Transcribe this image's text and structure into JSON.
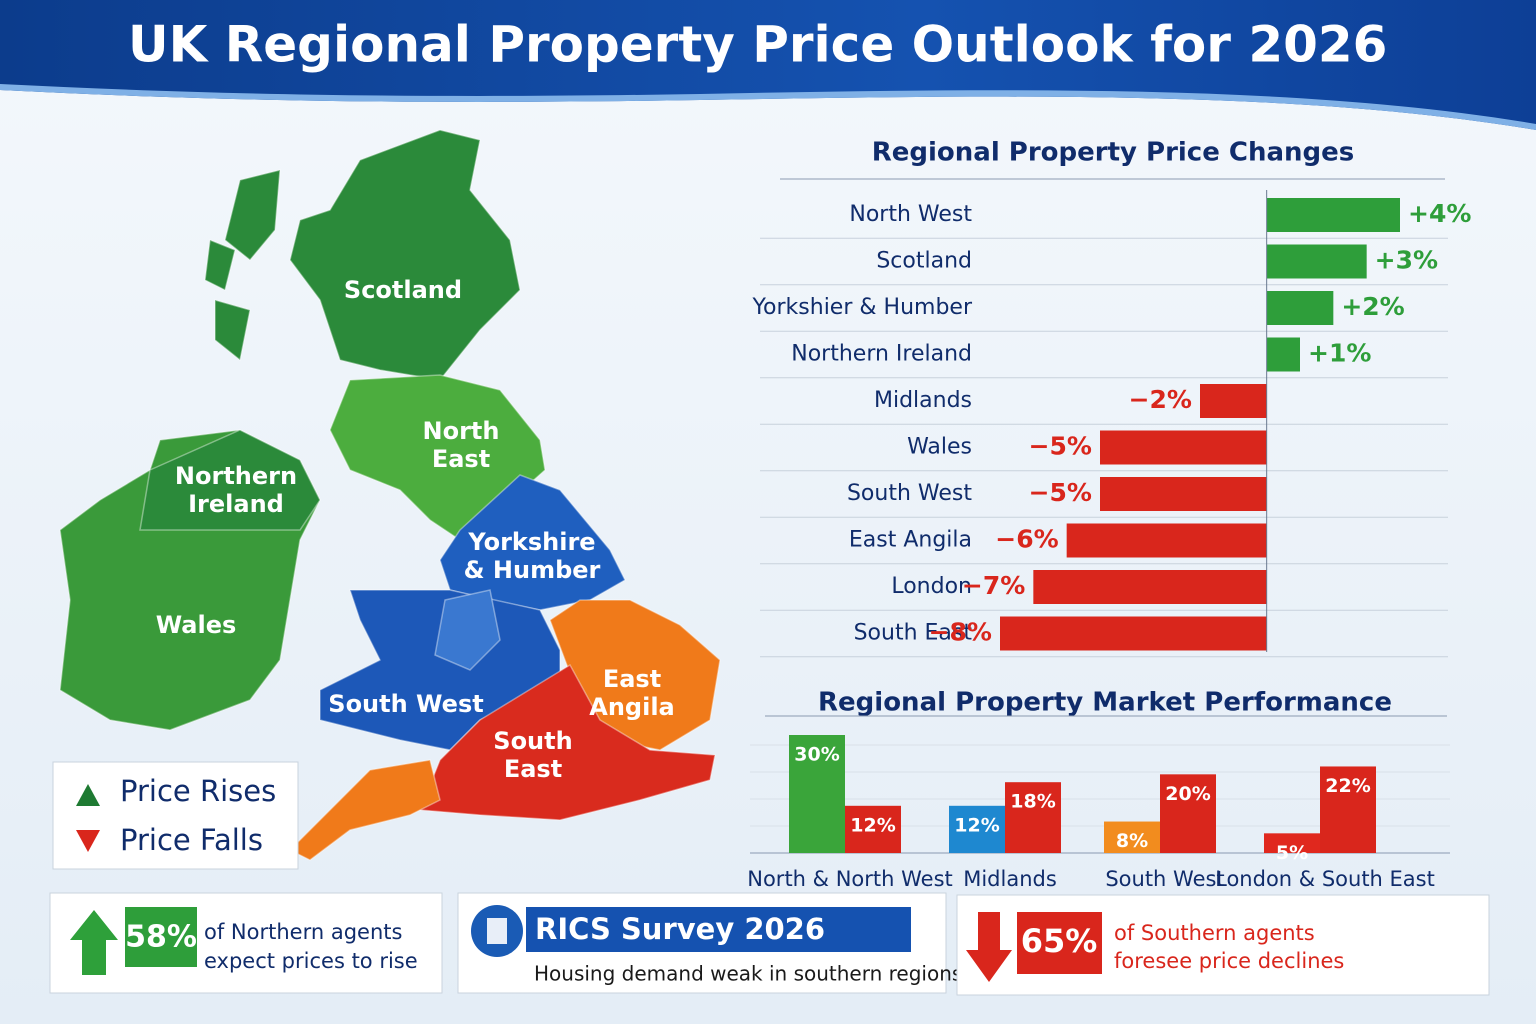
{
  "title": "UK Regional Property Price Outlook for 2026",
  "map": {
    "regions": [
      {
        "lines": [
          "Scotland"
        ]
      },
      {
        "lines": [
          "North",
          "East"
        ]
      },
      {
        "lines": [
          "Northern",
          "Ireland"
        ]
      },
      {
        "lines": [
          "Wales"
        ]
      },
      {
        "lines": [
          "Yorkshire",
          "& Humber"
        ]
      },
      {
        "lines": [
          "South West"
        ]
      },
      {
        "lines": [
          "East",
          "Angila"
        ]
      },
      {
        "lines": [
          "South",
          "East"
        ]
      }
    ]
  },
  "legend": [
    {
      "label": "Price Rises",
      "color": "#1e7a32"
    },
    {
      "label": "Price Falls",
      "color": "#d9261c"
    }
  ],
  "chart_data": [
    {
      "type": "hbar",
      "title": "Regional Property Price Changes",
      "categories": [
        "North West",
        "Scotland",
        "Yorkshier & Humber",
        "Northern Ireland",
        "Midlands",
        "Wales",
        "South West",
        "East Angila",
        "London",
        "South East"
      ],
      "values": [
        4,
        3,
        2,
        1,
        -2,
        -5,
        -5,
        -6,
        -7,
        -8
      ],
      "value_labels": [
        "+4%",
        "+3%",
        "+2%",
        "+1%",
        "−2%",
        "−5%",
        "−5%",
        "−6%",
        "−7%",
        "−8%"
      ],
      "positive_color": "#2e9e3a",
      "negative_color": "#d9261c"
    },
    {
      "type": "bar",
      "title": "Regional Property Market Performance",
      "categories": [
        "North & North West",
        "Midlands",
        "South West",
        "London & South East"
      ],
      "series": [
        {
          "colors": [
            "#3aa53a",
            "#1e88d0",
            "#f28c1e",
            "#e0281e"
          ],
          "values": [
            30,
            12,
            8,
            5
          ],
          "value_labels": [
            "30%",
            "12%",
            "8%",
            "5%"
          ]
        },
        {
          "color": "#d9261c",
          "values": [
            12,
            18,
            20,
            22
          ],
          "value_labels": [
            "12%",
            "18%",
            "20%",
            "22%"
          ]
        }
      ]
    }
  ],
  "callouts": [
    {
      "figure": "58%",
      "lines": [
        "of Northern agents",
        "expect prices to rise"
      ]
    },
    {
      "heading": "RICS Survey 2026",
      "text": "Housing demand weak in southern regions."
    },
    {
      "figure": "65%",
      "lines": [
        "of Southern agents",
        "foresee price declines"
      ]
    }
  ]
}
